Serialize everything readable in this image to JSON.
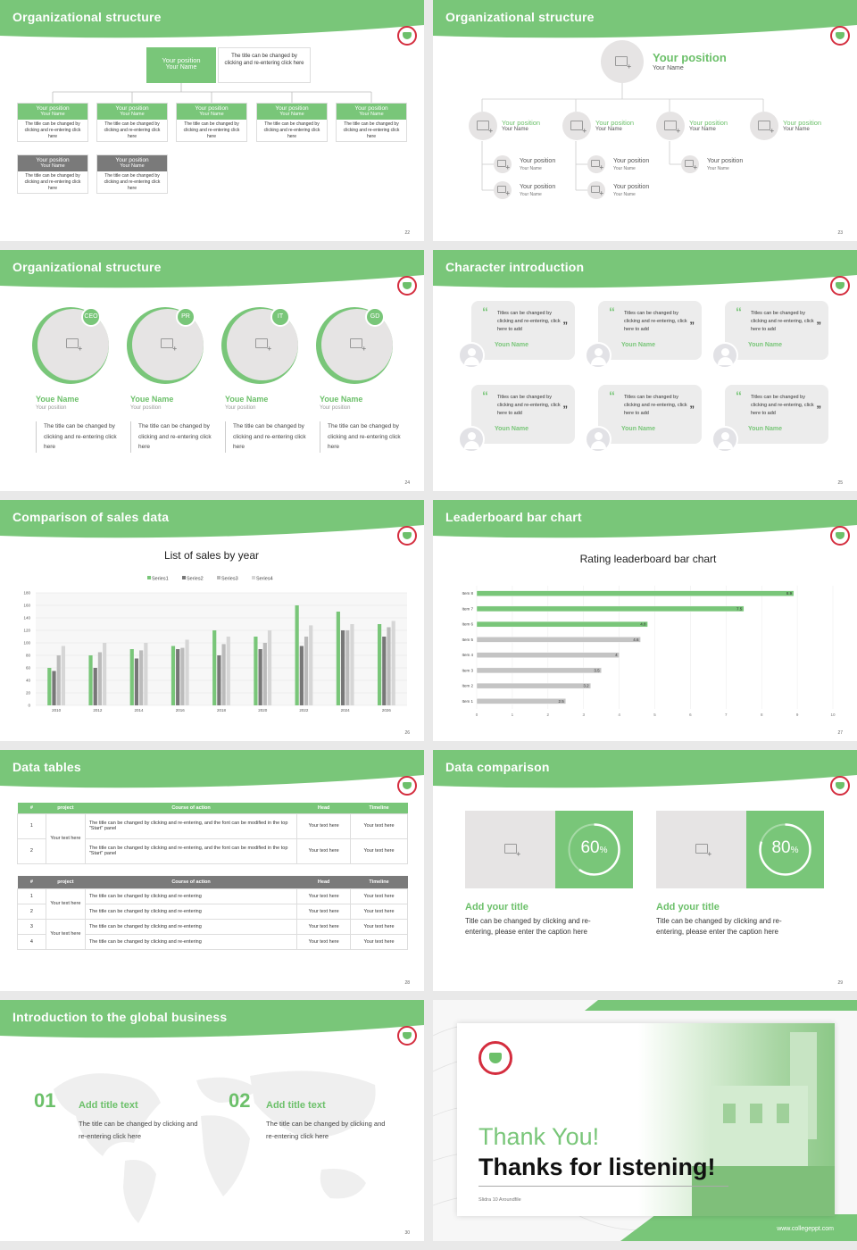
{
  "colors": {
    "accent": "#79c679",
    "gray": "#7a7a7a",
    "placeholder": "#e6e4e4"
  },
  "s22": {
    "title": "Organizational structure",
    "top_position": "Your position",
    "top_name": "Your Name",
    "top_desc": "The title can be changed by clicking and re-entering click here",
    "cards": [
      {
        "position": "Your position",
        "name": "Your Name",
        "desc": "The title can be changed by clicking and re-entering click here"
      },
      {
        "position": "Your position",
        "name": "Your Name",
        "desc": "The title can be changed by clicking and re-entering click here"
      },
      {
        "position": "Your position",
        "name": "Your Name",
        "desc": "The title can be changed by clicking and re-entering click here"
      },
      {
        "position": "Your position",
        "name": "Your Name",
        "desc": "The title can be changed by clicking and re-entering click here"
      },
      {
        "position": "Your position",
        "name": "Your Name",
        "desc": "The title can be changed by clicking and re-entering click here"
      },
      {
        "position": "Your position",
        "name": "Your Name",
        "desc": "The title can be changed by clicking and re-entering click here"
      },
      {
        "position": "Your position",
        "name": "Your Name",
        "desc": "The title can be changed by clicking and re-entering click here"
      }
    ],
    "page": "22"
  },
  "s23": {
    "title": "Organizational structure",
    "top_position": "Your position",
    "top_name": "Your Name",
    "row1": [
      {
        "position": "Your position",
        "name": "Your Name"
      },
      {
        "position": "Your position",
        "name": "Your Name"
      },
      {
        "position": "Your position",
        "name": "Your Name"
      },
      {
        "position": "Your position",
        "name": "Your Name"
      }
    ],
    "subs": [
      {
        "position": "Your position",
        "name": "Your Name"
      },
      {
        "position": "Your position",
        "name": "Your Name"
      },
      {
        "position": "Your position",
        "name": "Your Name"
      },
      {
        "position": "Your position",
        "name": "Your Name"
      },
      {
        "position": "Your position",
        "name": "Your Name"
      }
    ],
    "page": "23"
  },
  "s24": {
    "title": "Organizational structure",
    "people": [
      {
        "badge": "CEO",
        "name": "Youe Name",
        "position": "Your position",
        "desc": "The title can be changed by clicking and re-entering click here"
      },
      {
        "badge": "PR",
        "name": "Youe Name",
        "position": "Your position",
        "desc": "The title can be changed by clicking and re-entering click here"
      },
      {
        "badge": "IT",
        "name": "Youe Name",
        "position": "Your position",
        "desc": "The title can be changed by clicking and re-entering click here"
      },
      {
        "badge": "GD",
        "name": "Youe Name",
        "position": "Your position",
        "desc": "The title can be changed by clicking and re-entering click here"
      }
    ],
    "page": "24"
  },
  "s25": {
    "title": "Character introduction",
    "quote_text": "Titles can be changed by clicking and re-entering, click here to add",
    "names": [
      "Youn Name",
      "Youn Name",
      "Youn Name",
      "Youn Name",
      "Youn Name",
      "Youn Name"
    ],
    "page": "25"
  },
  "s26": {
    "title": "Comparison of sales data",
    "page": "26"
  },
  "s27": {
    "title": "Leaderboard bar chart",
    "page": "27"
  },
  "s28": {
    "title": "Data tables",
    "t1_headers": [
      "#",
      "project",
      "Course of action",
      "Head",
      "Timeline"
    ],
    "t1_rows": [
      {
        "n": "1",
        "action": "The title can be changed by clicking and re-entering, and the font can be modified in the top \"Start\" panel",
        "head": "Your text here",
        "time": "Your text here"
      },
      {
        "n": "2",
        "action": "The title can be changed by clicking and re-entering, and the font can be modified in the top \"Start\" panel",
        "head": "Your text here",
        "time": "Your text here"
      }
    ],
    "t1_project": "Your text here",
    "t2_headers": [
      "#",
      "project",
      "Course of action",
      "Head",
      "Timeline"
    ],
    "t2_rows": [
      {
        "n": "1",
        "action": "The title can be changed by clicking and re-entering",
        "head": "Your text here",
        "time": "Your text here"
      },
      {
        "n": "2",
        "action": "The title can be changed by clicking and re-entering",
        "head": "Your text here",
        "time": "Your text here"
      },
      {
        "n": "3",
        "action": "The title can be changed by clicking and re-entering",
        "head": "Your text here",
        "time": "Your text here"
      },
      {
        "n": "4",
        "action": "The title can be changed by clicking and re-entering",
        "head": "Your text here",
        "time": "Your text here"
      }
    ],
    "t2_project_a": "Your text here",
    "t2_project_b": "Your text here",
    "page": "28"
  },
  "s29": {
    "title": "Data comparison",
    "items": [
      {
        "percent": "60",
        "unit": "%",
        "progress": 0.6,
        "heading": "Add your title",
        "desc": "Title can be changed by clicking and re-entering, please enter the caption here"
      },
      {
        "percent": "80",
        "unit": "%",
        "progress": 0.8,
        "heading": "Add your title",
        "desc": "Title can be changed by clicking and re-entering, please enter the caption here"
      }
    ],
    "page": "29"
  },
  "s30": {
    "title": "Introduction to the global business",
    "items": [
      {
        "num": "01",
        "heading": "Add title text",
        "desc": "The title can be changed by clicking and re-entering click here"
      },
      {
        "num": "02",
        "heading": "Add title text",
        "desc": "The title can be changed by clicking and re-entering click here"
      }
    ],
    "page": "30"
  },
  "s31": {
    "thank": "Thank You!",
    "thanks2": "Thanks for listening!",
    "meta": "Slidra   10   Aroundfile",
    "url": "www.collegeppt.com"
  },
  "chart_data": [
    {
      "type": "bar",
      "title": "List of sales by year",
      "categories": [
        "2010",
        "2012",
        "2014",
        "2016",
        "2018",
        "2020",
        "2022",
        "2024",
        "2026"
      ],
      "series": [
        {
          "name": "Series1",
          "color": "#79c679",
          "values": [
            60,
            80,
            90,
            95,
            120,
            110,
            160,
            150,
            130
          ]
        },
        {
          "name": "Series2",
          "color": "#777777",
          "values": [
            55,
            60,
            75,
            90,
            80,
            90,
            95,
            120,
            110
          ]
        },
        {
          "name": "Series3",
          "color": "#bbbbbb",
          "values": [
            80,
            85,
            88,
            92,
            98,
            100,
            110,
            120,
            125
          ]
        },
        {
          "name": "Series4",
          "color": "#d6d6d6",
          "values": [
            95,
            100,
            100,
            105,
            110,
            120,
            128,
            130,
            135
          ]
        }
      ],
      "ylim": [
        0,
        180
      ],
      "yticks": [
        "0",
        "20",
        "40",
        "60",
        "80",
        "100",
        "120",
        "140",
        "160",
        "180"
      ],
      "legend": "top"
    },
    {
      "type": "bar",
      "orientation": "horizontal",
      "title": "Rating leaderboard bar chart",
      "categories": [
        "Item 8",
        "Item 7",
        "Item 6",
        "Item 5",
        "Item 4",
        "Item 3",
        "Item 2",
        "Item 1"
      ],
      "values": [
        8.9,
        7.5,
        4.8,
        4.6,
        4,
        3.5,
        3.2,
        2.5
      ],
      "labels": [
        "8.9",
        "7.5",
        "4.8",
        "4.6",
        "4",
        "3.5",
        "3.2",
        "2.5"
      ],
      "highlight": [
        true,
        true,
        true,
        false,
        false,
        false,
        false,
        false
      ],
      "xlim": [
        0,
        10
      ],
      "xticks": [
        "0",
        "1",
        "2",
        "3",
        "4",
        "5",
        "6",
        "7",
        "8",
        "9",
        "10"
      ]
    }
  ]
}
